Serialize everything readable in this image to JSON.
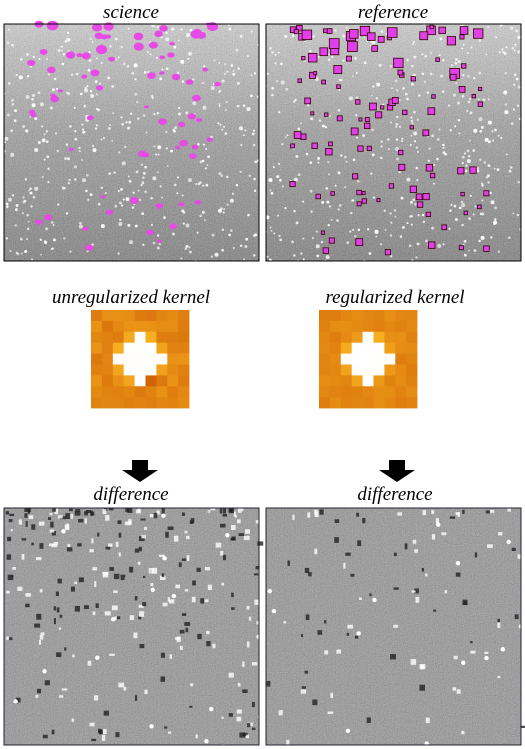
{
  "panels": {
    "science": {
      "label": "science"
    },
    "reference": {
      "label": "reference"
    }
  },
  "kernels": [
    {
      "label": "unregularized kernel"
    },
    {
      "label": "regularized kernel"
    }
  ],
  "differences": [
    {
      "label": "difference"
    },
    {
      "label": "difference"
    }
  ]
}
